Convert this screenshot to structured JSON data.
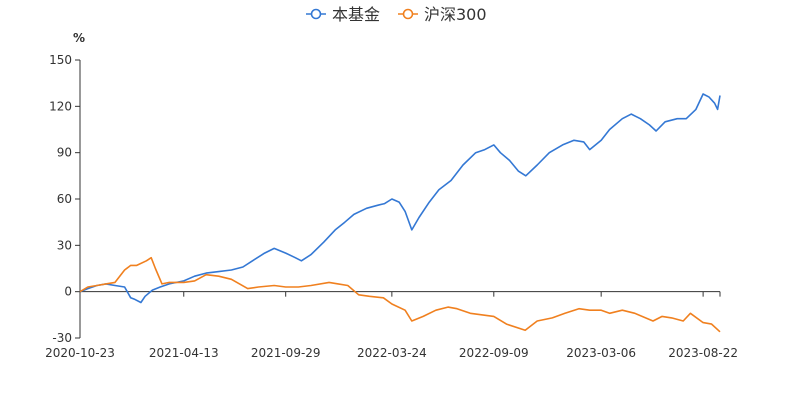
{
  "chart_data": {
    "type": "line",
    "ylabel": "%",
    "ylim": [
      -30,
      150
    ],
    "yticks": [
      -30,
      0,
      30,
      60,
      90,
      120,
      150
    ],
    "xlim": [
      "2020-10-23",
      "2023-09-19"
    ],
    "xticks": [
      "2020-10-23",
      "2021-04-13",
      "2021-09-29",
      "2022-03-24",
      "2022-09-09",
      "2023-03-06",
      "2023-08-22"
    ],
    "legend_position": "top-center",
    "grid": false,
    "series": [
      {
        "name": "本基金",
        "color": "#3478d4",
        "points": [
          [
            "2020-10-23",
            0
          ],
          [
            "2020-11-05",
            2
          ],
          [
            "2020-11-20",
            4
          ],
          [
            "2020-12-05",
            5
          ],
          [
            "2020-12-20",
            4
          ],
          [
            "2021-01-05",
            3
          ],
          [
            "2021-01-15",
            -4
          ],
          [
            "2021-01-22",
            -5
          ],
          [
            "2021-02-01",
            -7
          ],
          [
            "2021-02-08",
            -3
          ],
          [
            "2021-02-20",
            1
          ],
          [
            "2021-03-05",
            3
          ],
          [
            "2021-03-20",
            5
          ],
          [
            "2021-04-13",
            7
          ],
          [
            "2021-05-01",
            10
          ],
          [
            "2021-05-20",
            12
          ],
          [
            "2021-06-10",
            13
          ],
          [
            "2021-07-01",
            14
          ],
          [
            "2021-07-20",
            16
          ],
          [
            "2021-08-05",
            20
          ],
          [
            "2021-08-25",
            25
          ],
          [
            "2021-09-10",
            28
          ],
          [
            "2021-09-29",
            25
          ],
          [
            "2021-10-15",
            22
          ],
          [
            "2021-10-25",
            20
          ],
          [
            "2021-11-10",
            24
          ],
          [
            "2021-12-01",
            32
          ],
          [
            "2021-12-20",
            40
          ],
          [
            "2022-01-05",
            45
          ],
          [
            "2022-01-20",
            50
          ],
          [
            "2022-02-10",
            54
          ],
          [
            "2022-03-01",
            56
          ],
          [
            "2022-03-12",
            57
          ],
          [
            "2022-03-24",
            60
          ],
          [
            "2022-04-05",
            58
          ],
          [
            "2022-04-15",
            52
          ],
          [
            "2022-04-26",
            40
          ],
          [
            "2022-05-08",
            48
          ],
          [
            "2022-05-25",
            58
          ],
          [
            "2022-06-10",
            66
          ],
          [
            "2022-06-30",
            72
          ],
          [
            "2022-07-20",
            82
          ],
          [
            "2022-08-10",
            90
          ],
          [
            "2022-08-25",
            92
          ],
          [
            "2022-09-09",
            95
          ],
          [
            "2022-09-20",
            90
          ],
          [
            "2022-10-05",
            85
          ],
          [
            "2022-10-20",
            78
          ],
          [
            "2022-11-01",
            75
          ],
          [
            "2022-11-20",
            82
          ],
          [
            "2022-12-10",
            90
          ],
          [
            "2023-01-01",
            95
          ],
          [
            "2023-01-20",
            98
          ],
          [
            "2023-02-05",
            97
          ],
          [
            "2023-02-15",
            92
          ],
          [
            "2023-03-06",
            98
          ],
          [
            "2023-03-20",
            105
          ],
          [
            "2023-04-10",
            112
          ],
          [
            "2023-04-25",
            115
          ],
          [
            "2023-05-10",
            112
          ],
          [
            "2023-05-25",
            108
          ],
          [
            "2023-06-05",
            104
          ],
          [
            "2023-06-20",
            110
          ],
          [
            "2023-07-10",
            112
          ],
          [
            "2023-07-25",
            112
          ],
          [
            "2023-08-10",
            118
          ],
          [
            "2023-08-22",
            128
          ],
          [
            "2023-09-01",
            126
          ],
          [
            "2023-09-10",
            122
          ],
          [
            "2023-09-15",
            118
          ],
          [
            "2023-09-19",
            127
          ]
        ]
      },
      {
        "name": "沪深300",
        "color": "#f0801f",
        "points": [
          [
            "2020-10-23",
            0
          ],
          [
            "2020-11-05",
            3
          ],
          [
            "2020-11-20",
            4
          ],
          [
            "2020-12-05",
            5
          ],
          [
            "2020-12-20",
            6
          ],
          [
            "2021-01-05",
            14
          ],
          [
            "2021-01-15",
            17
          ],
          [
            "2021-01-25",
            17
          ],
          [
            "2021-02-10",
            20
          ],
          [
            "2021-02-18",
            22
          ],
          [
            "2021-02-25",
            15
          ],
          [
            "2021-03-08",
            5
          ],
          [
            "2021-03-20",
            6
          ],
          [
            "2021-04-13",
            6
          ],
          [
            "2021-05-01",
            7
          ],
          [
            "2021-05-20",
            11
          ],
          [
            "2021-06-10",
            10
          ],
          [
            "2021-07-01",
            8
          ],
          [
            "2021-07-28",
            2
          ],
          [
            "2021-08-15",
            3
          ],
          [
            "2021-09-10",
            4
          ],
          [
            "2021-09-29",
            3
          ],
          [
            "2021-10-20",
            3
          ],
          [
            "2021-11-10",
            4
          ],
          [
            "2021-12-10",
            6
          ],
          [
            "2021-12-25",
            5
          ],
          [
            "2022-01-10",
            4
          ],
          [
            "2022-01-28",
            -2
          ],
          [
            "2022-02-15",
            -3
          ],
          [
            "2022-03-10",
            -4
          ],
          [
            "2022-03-24",
            -8
          ],
          [
            "2022-04-15",
            -12
          ],
          [
            "2022-04-26",
            -19
          ],
          [
            "2022-05-15",
            -16
          ],
          [
            "2022-06-05",
            -12
          ],
          [
            "2022-06-25",
            -10
          ],
          [
            "2022-07-10",
            -11
          ],
          [
            "2022-08-01",
            -14
          ],
          [
            "2022-09-09",
            -16
          ],
          [
            "2022-09-30",
            -21
          ],
          [
            "2022-10-31",
            -25
          ],
          [
            "2022-11-20",
            -19
          ],
          [
            "2022-12-15",
            -17
          ],
          [
            "2023-01-05",
            -14
          ],
          [
            "2023-01-28",
            -11
          ],
          [
            "2023-02-15",
            -12
          ],
          [
            "2023-03-06",
            -12
          ],
          [
            "2023-03-20",
            -14
          ],
          [
            "2023-04-10",
            -12
          ],
          [
            "2023-05-01",
            -14
          ],
          [
            "2023-05-31",
            -19
          ],
          [
            "2023-06-15",
            -16
          ],
          [
            "2023-07-01",
            -17
          ],
          [
            "2023-07-20",
            -19
          ],
          [
            "2023-08-01",
            -14
          ],
          [
            "2023-08-22",
            -20
          ],
          [
            "2023-09-05",
            -21
          ],
          [
            "2023-09-19",
            -26
          ]
        ]
      }
    ]
  }
}
